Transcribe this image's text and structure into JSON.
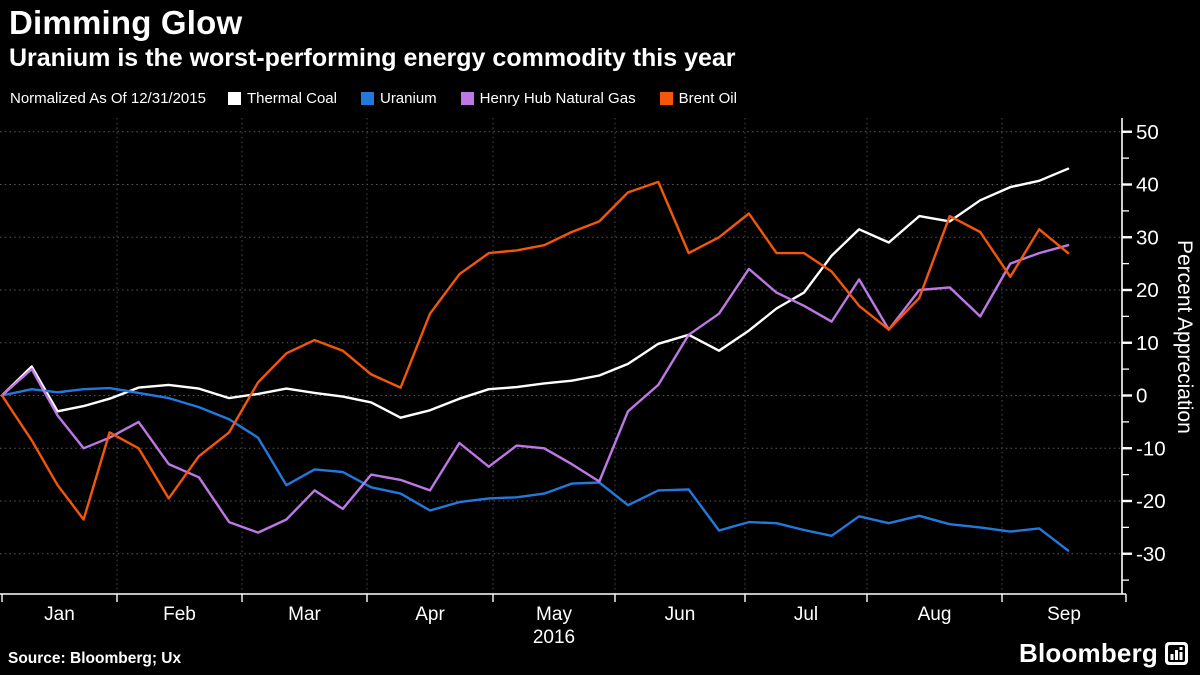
{
  "header": {
    "title": "Dimming Glow",
    "subtitle": "Uranium is the worst-performing energy commodity this year"
  },
  "legend": {
    "prefix": "Normalized As Of 12/31/2015",
    "items": [
      {
        "label": "Thermal Coal",
        "color": "#ffffff"
      },
      {
        "label": "Uranium",
        "color": "#2478dc"
      },
      {
        "label": "Henry Hub Natural Gas",
        "color": "#be78e6"
      },
      {
        "label": "Brent Oil",
        "color": "#f4560a"
      }
    ]
  },
  "chart_data": {
    "type": "line",
    "title": "Dimming Glow",
    "subtitle": "Uranium is the worst-performing energy commodity this year",
    "ylabel": "Percent Appreciation",
    "ylim": [
      -33,
      52
    ],
    "yticks": [
      50,
      40,
      30,
      20,
      10,
      0,
      -10,
      -20,
      -30
    ],
    "grid": "dotted",
    "legend_position": "top",
    "year_label": "2016",
    "month_labels": [
      "Jan",
      "Feb",
      "Mar",
      "Apr",
      "May",
      "Jun",
      "Jul",
      "Aug",
      "Sep"
    ],
    "x": [
      "Dec 31",
      "Jan 8",
      "Jan 15",
      "Jan 22",
      "Jan 29",
      "Feb 5",
      "Feb 12",
      "Feb 19",
      "Feb 26",
      "Mar 4",
      "Mar 11",
      "Mar 18",
      "Mar 25",
      "Apr 1",
      "Apr 8",
      "Apr 15",
      "Apr 22",
      "Apr 29",
      "May 6",
      "May 13",
      "May 20",
      "May 27",
      "Jun 3",
      "Jun 10",
      "Jun 17",
      "Jun 24",
      "Jul 1",
      "Jul 8",
      "Jul 15",
      "Jul 22",
      "Jul 29",
      "Aug 5",
      "Aug 12",
      "Aug 19",
      "Aug 26",
      "Sep 2",
      "Sep 9",
      "Sep 16"
    ],
    "x_days": [
      0,
      8,
      15,
      22,
      29,
      36,
      43,
      50,
      57,
      64,
      71,
      78,
      85,
      92,
      99,
      106,
      113,
      120,
      127,
      134,
      141,
      148,
      155,
      162,
      169,
      176,
      183,
      190,
      197,
      204,
      211,
      218,
      225,
      232,
      239,
      246,
      253,
      260
    ],
    "series": [
      {
        "name": "Thermal Coal",
        "color": "#ffffff",
        "values": [
          0,
          5.5,
          -3,
          -2,
          -0.6,
          1.5,
          2,
          1.3,
          -0.5,
          0.3,
          1.3,
          0.5,
          -0.2,
          -1.3,
          -4.2,
          -2.8,
          -0.6,
          1.2,
          1.6,
          2.3,
          2.8,
          3.8,
          6,
          9.8,
          11.5,
          8.5,
          12.3,
          16.5,
          19.5,
          26.5,
          31.5,
          29,
          34,
          33,
          37,
          39.5,
          40.7,
          43
        ]
      },
      {
        "name": "Uranium",
        "color": "#2478dc",
        "values": [
          0,
          1.2,
          0.6,
          1.2,
          1.4,
          0.5,
          -0.5,
          -2.2,
          -4.5,
          -8,
          -17,
          -14,
          -14.5,
          -17.4,
          -18.6,
          -21.8,
          -20.2,
          -19.5,
          -19.3,
          -18.6,
          -16.7,
          -16.5,
          -20.8,
          -18,
          -17.8,
          -25.6,
          -24,
          -24.2,
          -25.5,
          -26.6,
          -22.9,
          -24.2,
          -22.8,
          -24.4,
          -25,
          -25.8,
          -25.2,
          -29.4
        ]
      },
      {
        "name": "Henry Hub Natural Gas",
        "color": "#be78e6",
        "values": [
          0,
          5,
          -3.8,
          -10,
          -8,
          -5,
          -13,
          -15.5,
          -24,
          -26,
          -23.5,
          -18,
          -21.5,
          -15,
          -16,
          -18,
          -9,
          -13.5,
          -9.5,
          -10,
          -13,
          -16.3,
          -3,
          2,
          11.5,
          15.5,
          24,
          19.5,
          17,
          14,
          22,
          12.5,
          20,
          20.5,
          15,
          25,
          27,
          28.5
        ]
      },
      {
        "name": "Brent Oil",
        "color": "#f4560a",
        "values": [
          0,
          -8.5,
          -17,
          -23.5,
          -7,
          -10,
          -19.5,
          -11.5,
          -7,
          2.5,
          8,
          10.5,
          8.5,
          4,
          1.5,
          15.5,
          23,
          27,
          27.5,
          28.5,
          31,
          33,
          38.5,
          40.5,
          27,
          30,
          34.5,
          27,
          27,
          23.5,
          17,
          12.5,
          18.5,
          34,
          31,
          22.5,
          31.5,
          27
        ]
      }
    ]
  },
  "footer": {
    "source": "Source: Bloomberg; Ux",
    "brand": "Bloomberg"
  }
}
